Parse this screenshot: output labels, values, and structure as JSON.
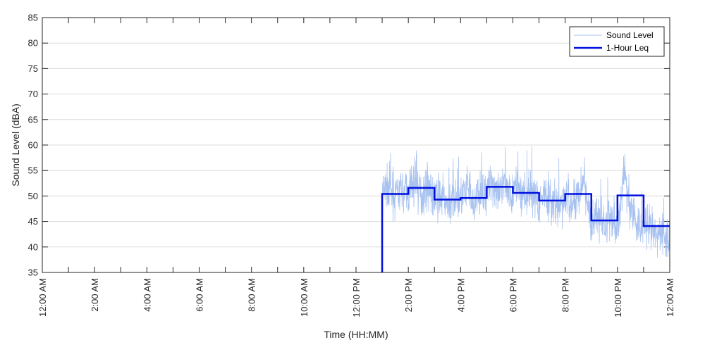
{
  "chart_data": {
    "type": "line",
    "title": "",
    "xlabel": "Time (HH:MM)",
    "ylabel": "Sound Level (dBA)",
    "xlim_hours": [
      0,
      24
    ],
    "ylim": [
      35,
      85
    ],
    "yticks": [
      35,
      40,
      45,
      50,
      55,
      60,
      65,
      70,
      75,
      80,
      85
    ],
    "xticks": [
      {
        "hour": 0,
        "label": "12:00 AM"
      },
      {
        "hour": 2,
        "label": "2:00 AM"
      },
      {
        "hour": 4,
        "label": "4:00 AM"
      },
      {
        "hour": 6,
        "label": "6:00 AM"
      },
      {
        "hour": 8,
        "label": "8:00 AM"
      },
      {
        "hour": 10,
        "label": "10:00 AM"
      },
      {
        "hour": 12,
        "label": "12:00 PM"
      },
      {
        "hour": 14,
        "label": "2:00 PM"
      },
      {
        "hour": 16,
        "label": "4:00 PM"
      },
      {
        "hour": 18,
        "label": "6:00 PM"
      },
      {
        "hour": 20,
        "label": "8:00 PM"
      },
      {
        "hour": 22,
        "label": "10:00 PM"
      },
      {
        "hour": 24,
        "label": "12:00 AM"
      }
    ],
    "grid": "horizontal",
    "legend_position": "top-right",
    "series": [
      {
        "name": "Sound Level",
        "color": "#a8c2f0",
        "style": "thin",
        "x": [
          13.0,
          13.25,
          13.5,
          13.75,
          14.0,
          14.25,
          14.5,
          14.75,
          15.0,
          15.25,
          15.5,
          15.75,
          16.0,
          16.25,
          16.5,
          16.75,
          17.0,
          17.25,
          17.5,
          17.75,
          18.0,
          18.25,
          18.5,
          18.75,
          19.0,
          19.25,
          19.5,
          19.75,
          20.0,
          20.25,
          20.5,
          20.75,
          21.0,
          21.25,
          21.5,
          21.75,
          22.0,
          22.25,
          22.5,
          22.75,
          23.0,
          23.25,
          23.5,
          23.75,
          24.0
        ],
        "values": [
          50.5,
          52.0,
          49.5,
          51.0,
          50.5,
          53.0,
          50.0,
          52.5,
          49.0,
          50.0,
          47.5,
          50.5,
          49.5,
          51.5,
          48.0,
          50.5,
          51.5,
          52.5,
          50.5,
          52.0,
          51.0,
          52.0,
          49.5,
          51.0,
          49.0,
          50.5,
          48.5,
          47.0,
          50.0,
          48.0,
          50.5,
          52.5,
          45.0,
          46.0,
          44.5,
          45.5,
          43.0,
          55.0,
          48.0,
          44.5,
          44.0,
          43.5,
          42.0,
          43.5,
          40.5
        ]
      },
      {
        "name": "1-Hour Leq",
        "color": "#0010e0",
        "style": "step",
        "x": [
          13,
          14,
          15,
          16,
          17,
          18,
          19,
          20,
          21,
          22,
          23
        ],
        "values": [
          50.4,
          51.6,
          49.3,
          49.6,
          51.8,
          50.6,
          49.1,
          50.4,
          45.2,
          50.1,
          44.1
        ]
      }
    ]
  }
}
